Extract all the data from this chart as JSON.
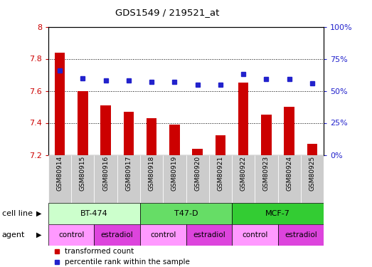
{
  "title": "GDS1549 / 219521_at",
  "samples": [
    "GSM80914",
    "GSM80915",
    "GSM80916",
    "GSM80917",
    "GSM80918",
    "GSM80919",
    "GSM80920",
    "GSM80921",
    "GSM80922",
    "GSM80923",
    "GSM80924",
    "GSM80925"
  ],
  "transformed_count": [
    7.84,
    7.6,
    7.51,
    7.47,
    7.43,
    7.39,
    7.24,
    7.32,
    7.65,
    7.45,
    7.5,
    7.27
  ],
  "percentile_rank": [
    66,
    60,
    58,
    58,
    57,
    57,
    55,
    55,
    63,
    59,
    59,
    56
  ],
  "ylim_left": [
    7.2,
    8.0
  ],
  "ylim_right": [
    0,
    100
  ],
  "yticks_left": [
    7.2,
    7.4,
    7.6,
    7.8,
    8.0
  ],
  "ytick_labels_left": [
    "7.2",
    "7.4",
    "7.6",
    "7.8",
    "8"
  ],
  "yticks_right": [
    0,
    25,
    50,
    75,
    100
  ],
  "ytick_labels_right": [
    "0%",
    "25%",
    "50%",
    "75%",
    "100%"
  ],
  "bar_color": "#cc0000",
  "dot_color": "#2222cc",
  "cell_lines": [
    {
      "label": "BT-474",
      "start": 0,
      "end": 3,
      "color": "#ccffcc"
    },
    {
      "label": "T47-D",
      "start": 4,
      "end": 7,
      "color": "#66dd66"
    },
    {
      "label": "MCF-7",
      "start": 8,
      "end": 11,
      "color": "#33cc33"
    }
  ],
  "agents": [
    {
      "label": "control",
      "start": 0,
      "end": 1,
      "color": "#ff99ff"
    },
    {
      "label": "estradiol",
      "start": 2,
      "end": 3,
      "color": "#dd44dd"
    },
    {
      "label": "control",
      "start": 4,
      "end": 5,
      "color": "#ff99ff"
    },
    {
      "label": "estradiol",
      "start": 6,
      "end": 7,
      "color": "#dd44dd"
    },
    {
      "label": "control",
      "start": 8,
      "end": 9,
      "color": "#ff99ff"
    },
    {
      "label": "estradiol",
      "start": 10,
      "end": 11,
      "color": "#dd44dd"
    }
  ],
  "cell_line_label": "cell line",
  "agent_label": "agent",
  "tick_bg_color": "#cccccc",
  "axis_color_left": "#cc0000",
  "axis_color_right": "#2222cc",
  "legend_red_label": "transformed count",
  "legend_blue_label": "percentile rank within the sample"
}
